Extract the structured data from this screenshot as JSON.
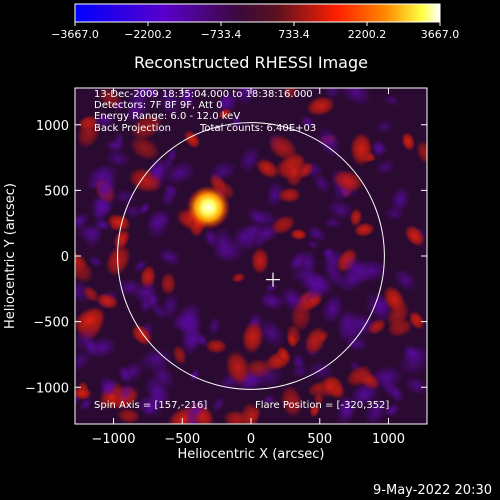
{
  "chart_data": {
    "type": "heatmap",
    "title": "Reconstructed RHESSI Image",
    "xlabel": "Heliocentric X (arcsec)",
    "ylabel": "Heliocentric Y (arcsec)",
    "xlim": [
      -1280,
      1280
    ],
    "ylim": [
      -1280,
      1280
    ],
    "x_ticks": [
      -1000,
      -500,
      0,
      500,
      1000
    ],
    "y_ticks": [
      -1000,
      -500,
      0,
      500,
      1000
    ],
    "x_tick_labels": [
      "−1000",
      "−500",
      "0",
      "500",
      "1000"
    ],
    "y_tick_labels": [
      "−1000",
      "−500",
      "0",
      "500",
      "1000"
    ],
    "colorbar": {
      "range": [
        -3667.0,
        3667.0
      ],
      "ticks": [
        -3667.0,
        -2200.2,
        -733.4,
        733.4,
        2200.2,
        3667.0
      ],
      "tick_labels": [
        "−3667.0",
        "−2200.2",
        "−733.4",
        "733.4",
        "2200.2",
        "3667.0"
      ],
      "colors": [
        "#0000ff",
        "#5a00c8",
        "#3a0a3a",
        "#5a1020",
        "#ff2000",
        "#ff8800",
        "#ffff40",
        "#ffffff"
      ]
    },
    "info_lines": [
      "13-Dec-2009 18:35:04.000 to 18:38:16.000",
      "Detectors: 7F 8F 9F, Att 0",
      "Energy Range: 6.0 - 12.0 keV"
    ],
    "info_line4_left": "Back Projection",
    "info_line4_right": "Total counts: 6.40E+03",
    "spin_axis": "Spin Axis = [157,-216]",
    "flare_position": "Flare Position = [-320,352]",
    "solar_disk_radius": 970,
    "bright_source": {
      "x": -310,
      "y": 370,
      "value": 3667
    },
    "cross_marker": {
      "x": 160,
      "y": -180
    },
    "grid": false
  },
  "footer_date": "9-May-2022 20:30"
}
